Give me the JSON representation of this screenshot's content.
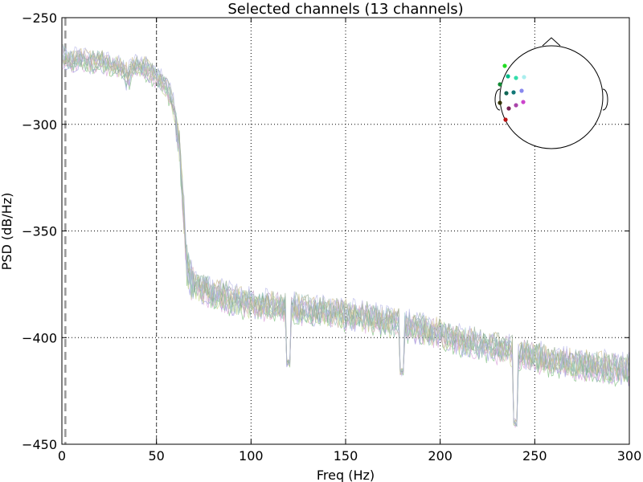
{
  "chart_data": {
    "type": "line",
    "title": "Selected channels (13 channels)",
    "xlabel": "Freq (Hz)",
    "ylabel": "PSD (dB/Hz)",
    "xlim": [
      0,
      300
    ],
    "ylim": [
      -450,
      -250
    ],
    "xticks": [
      0,
      50,
      100,
      150,
      200,
      250,
      300
    ],
    "yticks": [
      -250,
      -300,
      -350,
      -400,
      -450
    ],
    "xtick_labels": [
      "0",
      "50",
      "100",
      "150",
      "200",
      "250",
      "300"
    ],
    "ytick_labels": [
      "−250",
      "−300",
      "−350",
      "−400",
      "−450"
    ],
    "grid": true,
    "vertical_markers": [
      1,
      50,
      300
    ],
    "channel_count": 13,
    "series_colors": [
      "#7fbf7f",
      "#d9a0d9",
      "#a0a0e0",
      "#c8d890",
      "#90c0b0",
      "#e0b0c0",
      "#80b0a0",
      "#b0d0a0",
      "#c0a0c0",
      "#a0c8c8",
      "#d0c090",
      "#90a890",
      "#b8b8e8"
    ],
    "envelope": {
      "freq": [
        0,
        5,
        10,
        15,
        20,
        25,
        30,
        35,
        40,
        45,
        48,
        50,
        52,
        55,
        58,
        60,
        62,
        64,
        66,
        68,
        70,
        75,
        80,
        85,
        90,
        100,
        110,
        120,
        130,
        140,
        150,
        160,
        170,
        180,
        190,
        200,
        210,
        220,
        230,
        238,
        240,
        242,
        250,
        260,
        270,
        280,
        290,
        300
      ],
      "psd": [
        -268,
        -270,
        -269,
        -271,
        -270,
        -272,
        -273,
        -275,
        -272,
        -274,
        -276,
        -277,
        -279,
        -282,
        -288,
        -295,
        -310,
        -335,
        -365,
        -372,
        -375,
        -377,
        -379,
        -380,
        -382,
        -384,
        -385,
        -386,
        -387,
        -388,
        -389,
        -390,
        -392,
        -394,
        -396,
        -398,
        -401,
        -403,
        -405,
        -406,
        -418,
        -407,
        -409,
        -411,
        -412,
        -413,
        -414,
        -415
      ]
    },
    "dips": [
      {
        "x": 120,
        "depth": -412
      },
      {
        "x": 180,
        "depth": -416
      },
      {
        "x": 240,
        "depth": -440
      }
    ]
  },
  "head_inset": {
    "label": "sensor-layout",
    "sensors": [
      {
        "color": "#22dd22"
      },
      {
        "color": "#00bb88"
      },
      {
        "color": "#33ddaa"
      },
      {
        "color": "#aaeeee"
      },
      {
        "color": "#118833"
      },
      {
        "color": "#116655"
      },
      {
        "color": "#117777"
      },
      {
        "color": "#8888ee"
      },
      {
        "color": "#333300"
      },
      {
        "color": "#aa44aa"
      },
      {
        "color": "#cc44cc"
      },
      {
        "color": "#772255"
      },
      {
        "color": "#bb1111"
      }
    ]
  }
}
